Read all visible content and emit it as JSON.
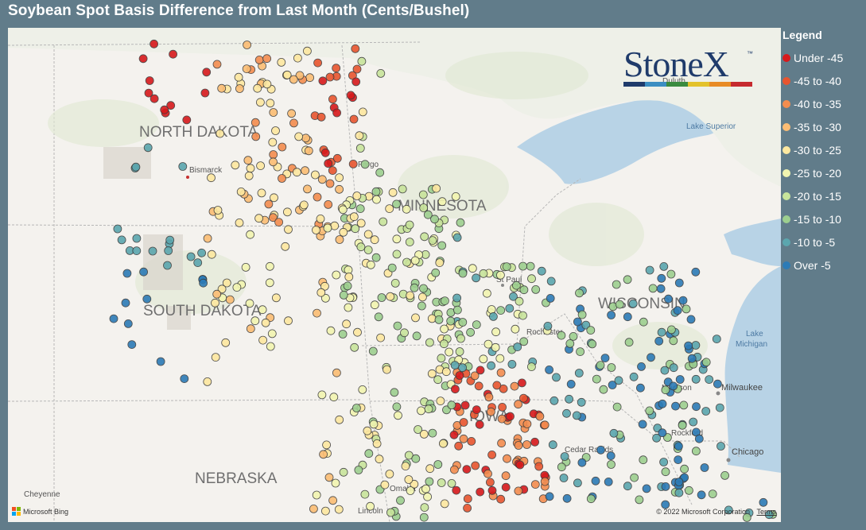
{
  "title": "Soybean Spot Basis Difference from Last Month (Cents/Bushel)",
  "legend": {
    "title": "Legend",
    "items": [
      {
        "label": "Under -45",
        "color": "#d7191c"
      },
      {
        "label": "-45 to -40",
        "color": "#e8552f"
      },
      {
        "label": "-40 to -35",
        "color": "#f38d4f"
      },
      {
        "label": "-35 to -30",
        "color": "#fbbd74"
      },
      {
        "label": "-30 to -25",
        "color": "#fde8a0"
      },
      {
        "label": "-25 to -20",
        "color": "#f2f5b0"
      },
      {
        "label": "-20 to -15",
        "color": "#c8e49b"
      },
      {
        "label": "-15 to -10",
        "color": "#9dcf8f"
      },
      {
        "label": "-10 to -5",
        "color": "#5ba6ae"
      },
      {
        "label": "Over -5",
        "color": "#2c7bb6"
      }
    ]
  },
  "map": {
    "labels": {
      "north_dakota": "NORTH DAKOTA",
      "south_dakota": "SOUTH DAKOTA",
      "minnesota": "MINNESOTA",
      "wisconsin": "WISCONSIN",
      "nebraska": "NEBRASKA",
      "bismarck": "Bismarck",
      "fargo": "Fargo",
      "st_paul": "St Paul",
      "rochester": "Rochester",
      "madison": "Madison",
      "milwaukee": "Milwaukee",
      "rockford": "Rockford",
      "chicago": "Chicago",
      "cedar_rapids": "Cedar Rapids",
      "iowa": "IOWA",
      "omaha": "Omaha",
      "lincoln": "Lincoln",
      "cheyenne": "Cheyenne",
      "lake_superior": "Lake Superior",
      "lake_michigan": "Lake\nMichigan",
      "duluth": "Duluth"
    },
    "logo": {
      "text": "StoneX",
      "tm": "™",
      "bar_colors": [
        "#1f3b6b",
        "#3b8ec2",
        "#3a8b3f",
        "#e3c22b",
        "#e88b25",
        "#c62a2f"
      ]
    },
    "attribution": {
      "provider": "Microsoft Bing",
      "copyright": "© 2022 Microsoft Corporation",
      "terms": "Terms"
    }
  }
}
